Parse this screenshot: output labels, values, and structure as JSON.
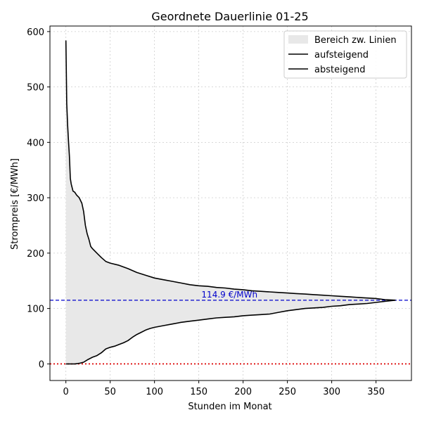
{
  "chart_data": {
    "type": "area",
    "title": "Geordnete Dauerlinie 01-25",
    "xlabel": "Stunden im Monat",
    "ylabel": "Strompreis [€/MWh]",
    "xlim": [
      -18,
      390
    ],
    "ylim": [
      -30,
      610
    ],
    "xticks": [
      0,
      50,
      100,
      150,
      200,
      250,
      300,
      350
    ],
    "yticks": [
      0,
      100,
      200,
      300,
      400,
      500,
      600
    ],
    "grid": true,
    "legend": {
      "position": "top-right",
      "entries": [
        {
          "label": "Bereich zw. Linien",
          "kind": "fill",
          "color": "#e8e8e8"
        },
        {
          "label": "aufsteigend",
          "kind": "line",
          "color": "#000000"
        },
        {
          "label": "absteigend",
          "kind": "line",
          "color": "#000000"
        }
      ]
    },
    "series": [
      {
        "name": "absteigend",
        "color": "#000000",
        "x": [
          0,
          1,
          2,
          3,
          4,
          5,
          6,
          8,
          10,
          12,
          15,
          18,
          20,
          22,
          24,
          26,
          28,
          30,
          35,
          40,
          45,
          50,
          60,
          70,
          80,
          90,
          100,
          110,
          120,
          130,
          140,
          150,
          160,
          170,
          180,
          190,
          200,
          210,
          220,
          230,
          240,
          250,
          260,
          270,
          280,
          290,
          300,
          310,
          320,
          330,
          340,
          350,
          360,
          372
        ],
        "y": [
          584,
          470,
          430,
          400,
          375,
          335,
          325,
          312,
          310,
          305,
          300,
          290,
          275,
          250,
          235,
          225,
          212,
          208,
          200,
          192,
          185,
          182,
          178,
          172,
          165,
          160,
          155,
          152,
          149,
          146,
          143,
          141,
          140,
          138,
          137,
          135,
          134,
          132,
          131,
          130,
          129,
          128,
          127,
          126,
          125,
          124,
          123,
          122,
          121,
          120,
          119,
          118,
          116,
          115
        ]
      },
      {
        "name": "aufsteigend",
        "color": "#000000",
        "x": [
          0,
          10,
          15,
          20,
          25,
          30,
          35,
          40,
          45,
          50,
          55,
          60,
          65,
          70,
          75,
          80,
          85,
          90,
          95,
          100,
          110,
          120,
          130,
          140,
          150,
          160,
          170,
          180,
          190,
          200,
          210,
          220,
          230,
          240,
          250,
          260,
          270,
          280,
          290,
          300,
          310,
          320,
          330,
          340,
          350,
          360,
          372
        ],
        "y": [
          0,
          0,
          1,
          3,
          8,
          12,
          15,
          20,
          27,
          30,
          32,
          35,
          38,
          42,
          48,
          53,
          57,
          61,
          64,
          66,
          69,
          72,
          75,
          77,
          79,
          81,
          83,
          84,
          85,
          87,
          88,
          89,
          90,
          93,
          96,
          98,
          100,
          101,
          102,
          104,
          105,
          107,
          108,
          109,
          111,
          113,
          115
        ]
      }
    ],
    "reference_lines": [
      {
        "kind": "horizontal",
        "y": 114.9,
        "color": "#0000cc",
        "style": "dashed",
        "label": "114.9 €/MWh",
        "label_x": 153
      },
      {
        "kind": "horizontal",
        "y": 0,
        "color": "#dd0000",
        "style": "dotted"
      }
    ]
  }
}
